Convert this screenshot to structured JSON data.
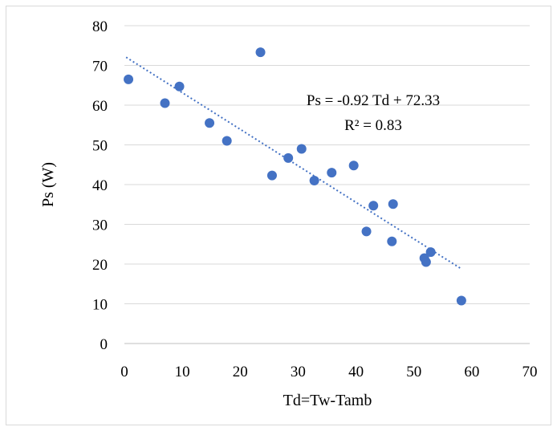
{
  "chart_data": {
    "type": "scatter",
    "xlabel": "Td=Tw-Tamb",
    "ylabel": "Ps (W)",
    "xlim": [
      0,
      70
    ],
    "ylim": [
      0,
      80
    ],
    "x_ticks": [
      "0",
      "10",
      "20",
      "30",
      "40",
      "50",
      "60",
      "70"
    ],
    "y_ticks": [
      "0",
      "10",
      "20",
      "30",
      "40",
      "50",
      "60",
      "70",
      "80"
    ],
    "grid": true,
    "legend": "none",
    "marker_color": "#4472c4",
    "trend_color": "#4472c4",
    "series": [
      {
        "points": [
          [
            0.7,
            66.5
          ],
          [
            7.0,
            60.5
          ],
          [
            9.5,
            64.7
          ],
          [
            14.7,
            55.5
          ],
          [
            17.7,
            51.0
          ],
          [
            23.5,
            73.3
          ],
          [
            25.5,
            42.3
          ],
          [
            28.3,
            46.7
          ],
          [
            30.6,
            49.0
          ],
          [
            32.8,
            41.0
          ],
          [
            35.8,
            43.0
          ],
          [
            39.6,
            44.8
          ],
          [
            41.8,
            28.2
          ],
          [
            43.0,
            34.7
          ],
          [
            46.2,
            25.7
          ],
          [
            46.4,
            35.1
          ],
          [
            51.8,
            21.5
          ],
          [
            52.1,
            20.5
          ],
          [
            52.9,
            23.0
          ],
          [
            58.2,
            10.8
          ]
        ]
      }
    ],
    "trendline": {
      "type": "linear",
      "x_range": [
        0.3,
        58.3
      ],
      "equation": "Ps = -0.92 Td + 72.33",
      "r_squared": "R² = 0.83"
    }
  }
}
